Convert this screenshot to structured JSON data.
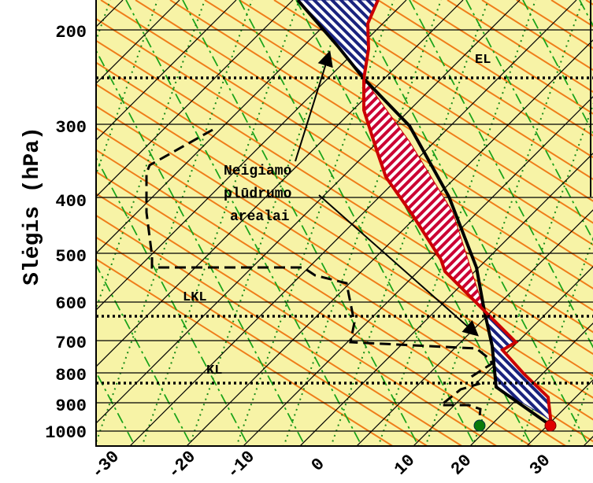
{
  "colors": {
    "background": "#f7f3a6",
    "isobar": "#000000",
    "isotherm": "#000000",
    "dry_adiabat": "#ef7d1a",
    "moist_adiabat": "#1aa31a",
    "mixing_ratio": "#1a8a1a",
    "temperature_profile": "#cc0000",
    "parcel_path": "#000000",
    "dewpoint_profile": "#000000",
    "cape_hatch": "#cc0033",
    "cin_hatch": "#1a237e",
    "level_line": "#000000",
    "surface_temp_marker": "#e00000",
    "surface_dew_marker": "#0a7a0a"
  },
  "y_axis": {
    "label": "Slėgis (hPa)",
    "ticks": [
      "200",
      "300",
      "400",
      "500",
      "600",
      "700",
      "800",
      "900",
      "1000"
    ]
  },
  "x_axis": {
    "ticks": [
      "-30",
      "-20",
      "-10",
      "0",
      "10",
      "20",
      "30"
    ]
  },
  "levels": {
    "el": "EL",
    "lkl": "LKL",
    "kl": "KL"
  },
  "annotation": {
    "line1": "Neigiamo",
    "line2": "plūdrumo",
    "line3": "arealai"
  }
}
